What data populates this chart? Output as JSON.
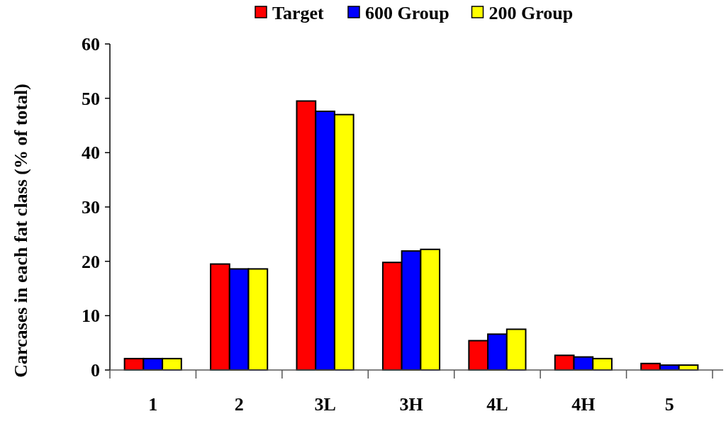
{
  "chart_data": {
    "type": "bar",
    "ylabel": "Carcases in each fat class (% of total)",
    "categories": [
      "1",
      "2",
      "3L",
      "3H",
      "4L",
      "4H",
      "5"
    ],
    "series": [
      {
        "name": "Target",
        "color": "#ff0000",
        "values": [
          2.1,
          19.5,
          49.5,
          19.8,
          5.4,
          2.7,
          1.2
        ]
      },
      {
        "name": "600 Group",
        "color": "#0000ff",
        "values": [
          2.1,
          18.6,
          47.6,
          21.9,
          6.6,
          2.4,
          0.9
        ]
      },
      {
        "name": "200 Group",
        "color": "#ffff00",
        "values": [
          2.1,
          18.6,
          47.0,
          22.2,
          7.5,
          2.1,
          0.9
        ]
      }
    ],
    "ylim": [
      0,
      60
    ],
    "yticks": [
      0,
      10,
      20,
      30,
      40,
      50,
      60
    ],
    "legend": "top",
    "grid": false
  }
}
